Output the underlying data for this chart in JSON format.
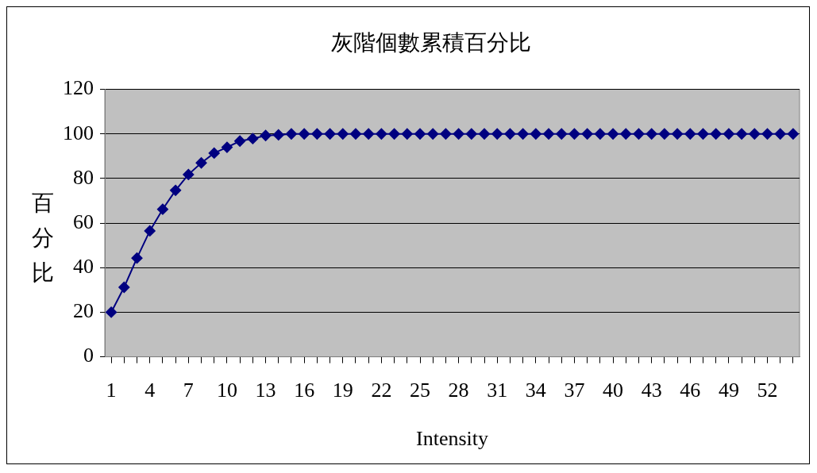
{
  "chart_data": {
    "type": "line",
    "title": "灰階個數累積百分比",
    "xlabel": "Intensity",
    "ylabel": "百分比",
    "categories": [
      "1",
      null,
      null,
      "4",
      null,
      null,
      "7",
      null,
      null,
      "10",
      null,
      null,
      "13",
      null,
      null,
      "16",
      null,
      null,
      "19",
      null,
      null,
      "22",
      null,
      null,
      "25",
      null,
      null,
      "28",
      null,
      null,
      "31",
      null,
      null,
      "34",
      null,
      null,
      "37",
      null,
      null,
      "40",
      null,
      null,
      "43",
      null,
      null,
      "46",
      null,
      null,
      "49",
      null,
      null,
      "52",
      null,
      null
    ],
    "series": [
      {
        "color": "#000080",
        "values": [
          20,
          31.2,
          44.3,
          56.5,
          66.2,
          74.7,
          81.8,
          87,
          91.4,
          94,
          96.8,
          97.9,
          99.3,
          99.6,
          100,
          100,
          100,
          100,
          100,
          100,
          100,
          100,
          100,
          100,
          100,
          100,
          100,
          100,
          100,
          100,
          100,
          100,
          100,
          100,
          100,
          100,
          100,
          100,
          100,
          100,
          100,
          100,
          100,
          100,
          100,
          100,
          100,
          100,
          100,
          100,
          100,
          100,
          100,
          100
        ]
      }
    ],
    "ylim": [
      0,
      120
    ],
    "yticks": [
      0,
      20,
      40,
      60,
      80,
      100,
      120
    ],
    "grid": "y",
    "legend": false,
    "marker": "diamond",
    "line_style": "solid"
  }
}
